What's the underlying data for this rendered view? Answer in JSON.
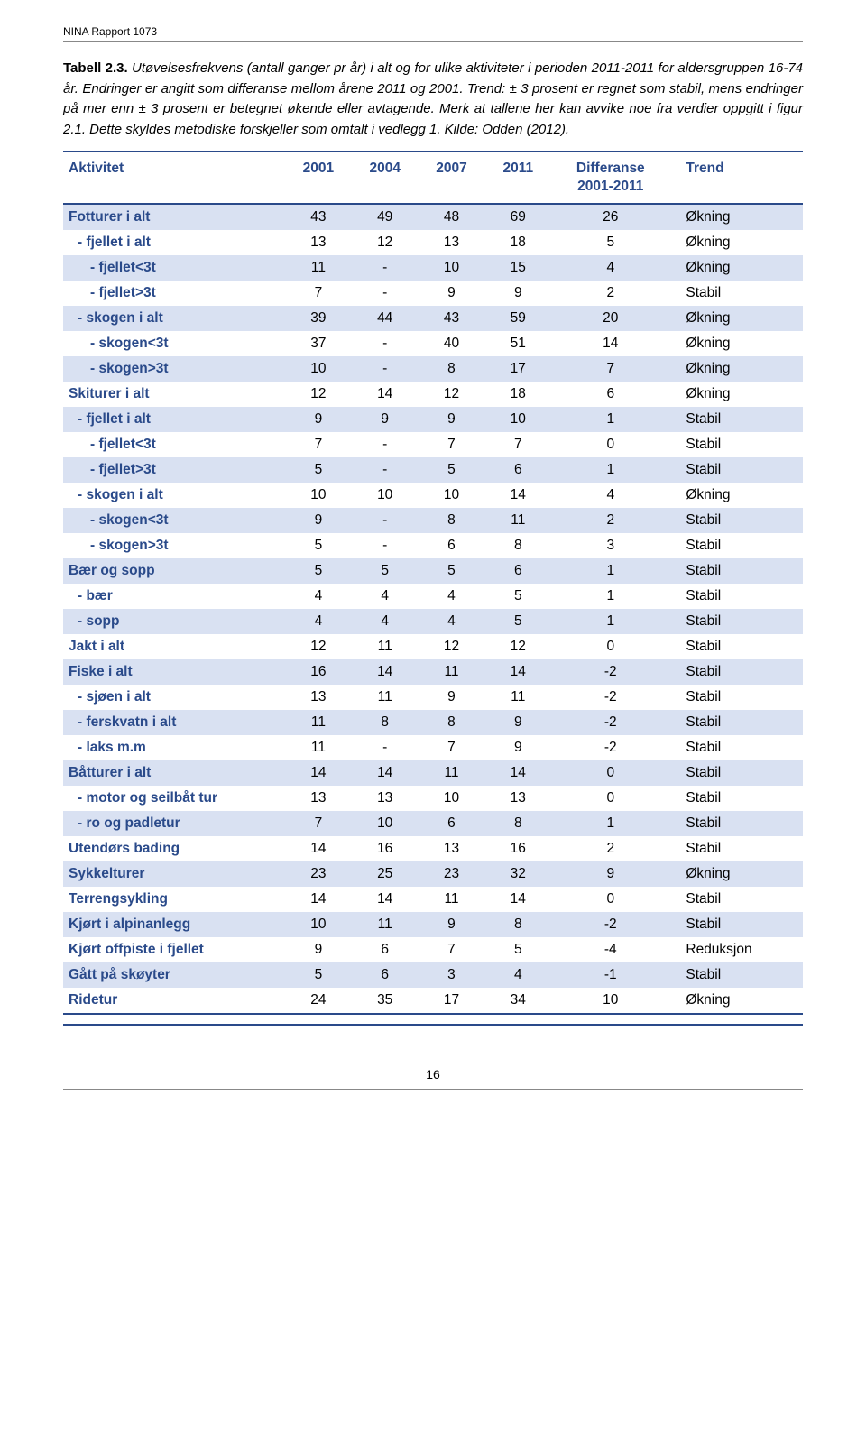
{
  "report_header": "NINA Rapport 1073",
  "caption_bold": "Tabell 2.3.",
  "caption_italic": " Utøvelsesfrekvens (antall ganger pr år) i alt og for ulike aktiviteter i perioden 2011-2011 for aldersgruppen 16-74 år. Endringer er angitt som differanse mellom årene 2011 og 2001. Trend: ± 3 prosent er regnet som stabil, mens endringer på mer enn ± 3 prosent er betegnet økende eller avtagende. Merk at tallene her kan avvike noe fra verdier oppgitt i figur 2.1. Dette skyldes metodiske forskjeller som omtalt i vedlegg 1. Kilde: Odden (2012).",
  "columns": [
    "Aktivitet",
    "2001",
    "2004",
    "2007",
    "2011",
    "Differanse 2001-2011",
    "Trend"
  ],
  "rows": [
    {
      "band": true,
      "indent": 0,
      "cells": [
        "Fotturer i alt",
        "43",
        "49",
        "48",
        "69",
        "26",
        "Økning"
      ]
    },
    {
      "band": false,
      "indent": 1,
      "cells": [
        " - fjellet i alt",
        "13",
        "12",
        "13",
        "18",
        "5",
        "Økning"
      ]
    },
    {
      "band": true,
      "indent": 2,
      "cells": [
        "  - fjellet<3t",
        "11",
        "-",
        "10",
        "15",
        "4",
        "Økning"
      ]
    },
    {
      "band": false,
      "indent": 2,
      "cells": [
        "  - fjellet>3t",
        "7",
        "-",
        "9",
        "9",
        "2",
        "Stabil"
      ]
    },
    {
      "band": true,
      "indent": 1,
      "cells": [
        " - skogen i alt",
        "39",
        "44",
        "43",
        "59",
        "20",
        "Økning"
      ]
    },
    {
      "band": false,
      "indent": 2,
      "cells": [
        "  - skogen<3t",
        "37",
        "-",
        "40",
        "51",
        "14",
        "Økning"
      ]
    },
    {
      "band": true,
      "indent": 2,
      "cells": [
        "  - skogen>3t",
        "10",
        "-",
        "8",
        "17",
        "7",
        "Økning"
      ]
    },
    {
      "band": false,
      "indent": 0,
      "cells": [
        "Skiturer i alt",
        "12",
        "14",
        "12",
        "18",
        "6",
        "Økning"
      ]
    },
    {
      "band": true,
      "indent": 1,
      "cells": [
        " - fjellet i alt",
        "9",
        "9",
        "9",
        "10",
        "1",
        "Stabil"
      ]
    },
    {
      "band": false,
      "indent": 2,
      "cells": [
        "  - fjellet<3t",
        "7",
        "-",
        "7",
        "7",
        "0",
        "Stabil"
      ]
    },
    {
      "band": true,
      "indent": 2,
      "cells": [
        "  - fjellet>3t",
        "5",
        "-",
        "5",
        "6",
        "1",
        "Stabil"
      ]
    },
    {
      "band": false,
      "indent": 1,
      "cells": [
        " - skogen i alt",
        "10",
        "10",
        "10",
        "14",
        "4",
        "Økning"
      ]
    },
    {
      "band": true,
      "indent": 2,
      "cells": [
        "  - skogen<3t",
        "9",
        "-",
        "8",
        "11",
        "2",
        "Stabil"
      ]
    },
    {
      "band": false,
      "indent": 2,
      "cells": [
        "  - skogen>3t",
        "5",
        "-",
        "6",
        "8",
        "3",
        "Stabil"
      ]
    },
    {
      "band": true,
      "indent": 0,
      "cells": [
        "Bær og sopp",
        "5",
        "5",
        "5",
        "6",
        "1",
        "Stabil"
      ]
    },
    {
      "band": false,
      "indent": 1,
      "cells": [
        " - bær",
        "4",
        "4",
        "4",
        "5",
        "1",
        "Stabil"
      ]
    },
    {
      "band": true,
      "indent": 1,
      "cells": [
        " - sopp",
        "4",
        "4",
        "4",
        "5",
        "1",
        "Stabil"
      ]
    },
    {
      "band": false,
      "indent": 0,
      "cells": [
        "Jakt i alt",
        "12",
        "11",
        "12",
        "12",
        "0",
        "Stabil"
      ]
    },
    {
      "band": true,
      "indent": 0,
      "cells": [
        "Fiske i alt",
        "16",
        "14",
        "11",
        "14",
        "-2",
        "Stabil"
      ]
    },
    {
      "band": false,
      "indent": 1,
      "cells": [
        " - sjøen i alt",
        "13",
        "11",
        "9",
        "11",
        "-2",
        "Stabil"
      ]
    },
    {
      "band": true,
      "indent": 1,
      "cells": [
        " - ferskvatn i alt",
        "11",
        "8",
        "8",
        "9",
        "-2",
        "Stabil"
      ]
    },
    {
      "band": false,
      "indent": 1,
      "cells": [
        " - laks m.m",
        "11",
        "-",
        "7",
        "9",
        "-2",
        "Stabil"
      ]
    },
    {
      "band": true,
      "indent": 0,
      "cells": [
        "Båtturer i alt",
        "14",
        "14",
        "11",
        "14",
        "0",
        "Stabil"
      ]
    },
    {
      "band": false,
      "indent": 1,
      "cells": [
        " - motor og seilbåt tur",
        "13",
        "13",
        "10",
        "13",
        "0",
        "Stabil"
      ]
    },
    {
      "band": true,
      "indent": 1,
      "cells": [
        " - ro og padletur",
        "7",
        "10",
        "6",
        "8",
        "1",
        "Stabil"
      ]
    },
    {
      "band": false,
      "indent": 0,
      "cells": [
        "Utendørs bading",
        "14",
        "16",
        "13",
        "16",
        "2",
        "Stabil"
      ]
    },
    {
      "band": true,
      "indent": 0,
      "cells": [
        "Sykkelturer",
        "23",
        "25",
        "23",
        "32",
        "9",
        "Økning"
      ]
    },
    {
      "band": false,
      "indent": 0,
      "cells": [
        "Terrengsykling",
        "14",
        "14",
        "11",
        "14",
        "0",
        "Stabil"
      ]
    },
    {
      "band": true,
      "indent": 0,
      "cells": [
        "Kjørt i alpinanlegg",
        "10",
        "11",
        "9",
        "8",
        "-2",
        "Stabil"
      ]
    },
    {
      "band": false,
      "indent": 0,
      "cells": [
        "Kjørt offpiste i fjellet",
        "9",
        "6",
        "7",
        "5",
        "-4",
        "Reduksjon"
      ]
    },
    {
      "band": true,
      "indent": 0,
      "cells": [
        "Gått på skøyter",
        "5",
        "6",
        "3",
        "4",
        "-1",
        "Stabil"
      ]
    },
    {
      "band": false,
      "indent": 0,
      "cells": [
        "Ridetur",
        "24",
        "35",
        "17",
        "34",
        "10",
        "Økning"
      ]
    }
  ],
  "page_number": "16",
  "style": {
    "header_color": "#2a4a8a",
    "band_color": "#d9e1f2",
    "rule_color": "#2a4a8a",
    "col_widths_pct": [
      30,
      9,
      9,
      9,
      9,
      16,
      18
    ]
  }
}
